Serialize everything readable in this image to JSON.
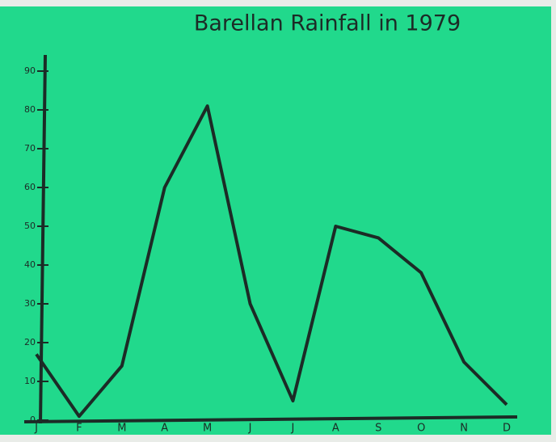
{
  "chart_data": {
    "type": "line",
    "title": "Barellan Rainfall in 1979",
    "categories": [
      "J",
      "F",
      "M",
      "A",
      "M",
      "J",
      "J",
      "A",
      "S",
      "O",
      "N",
      "D"
    ],
    "series": [
      {
        "name": "Rainfall",
        "color": "#1c2b26",
        "values": [
          17,
          1,
          14,
          60,
          81,
          30,
          5,
          50,
          47,
          38,
          15,
          4
        ]
      }
    ],
    "ylim": [
      0,
      90
    ],
    "yticks": [
      0,
      10,
      20,
      30,
      40,
      50,
      60,
      70,
      80,
      90
    ],
    "grid": false
  }
}
